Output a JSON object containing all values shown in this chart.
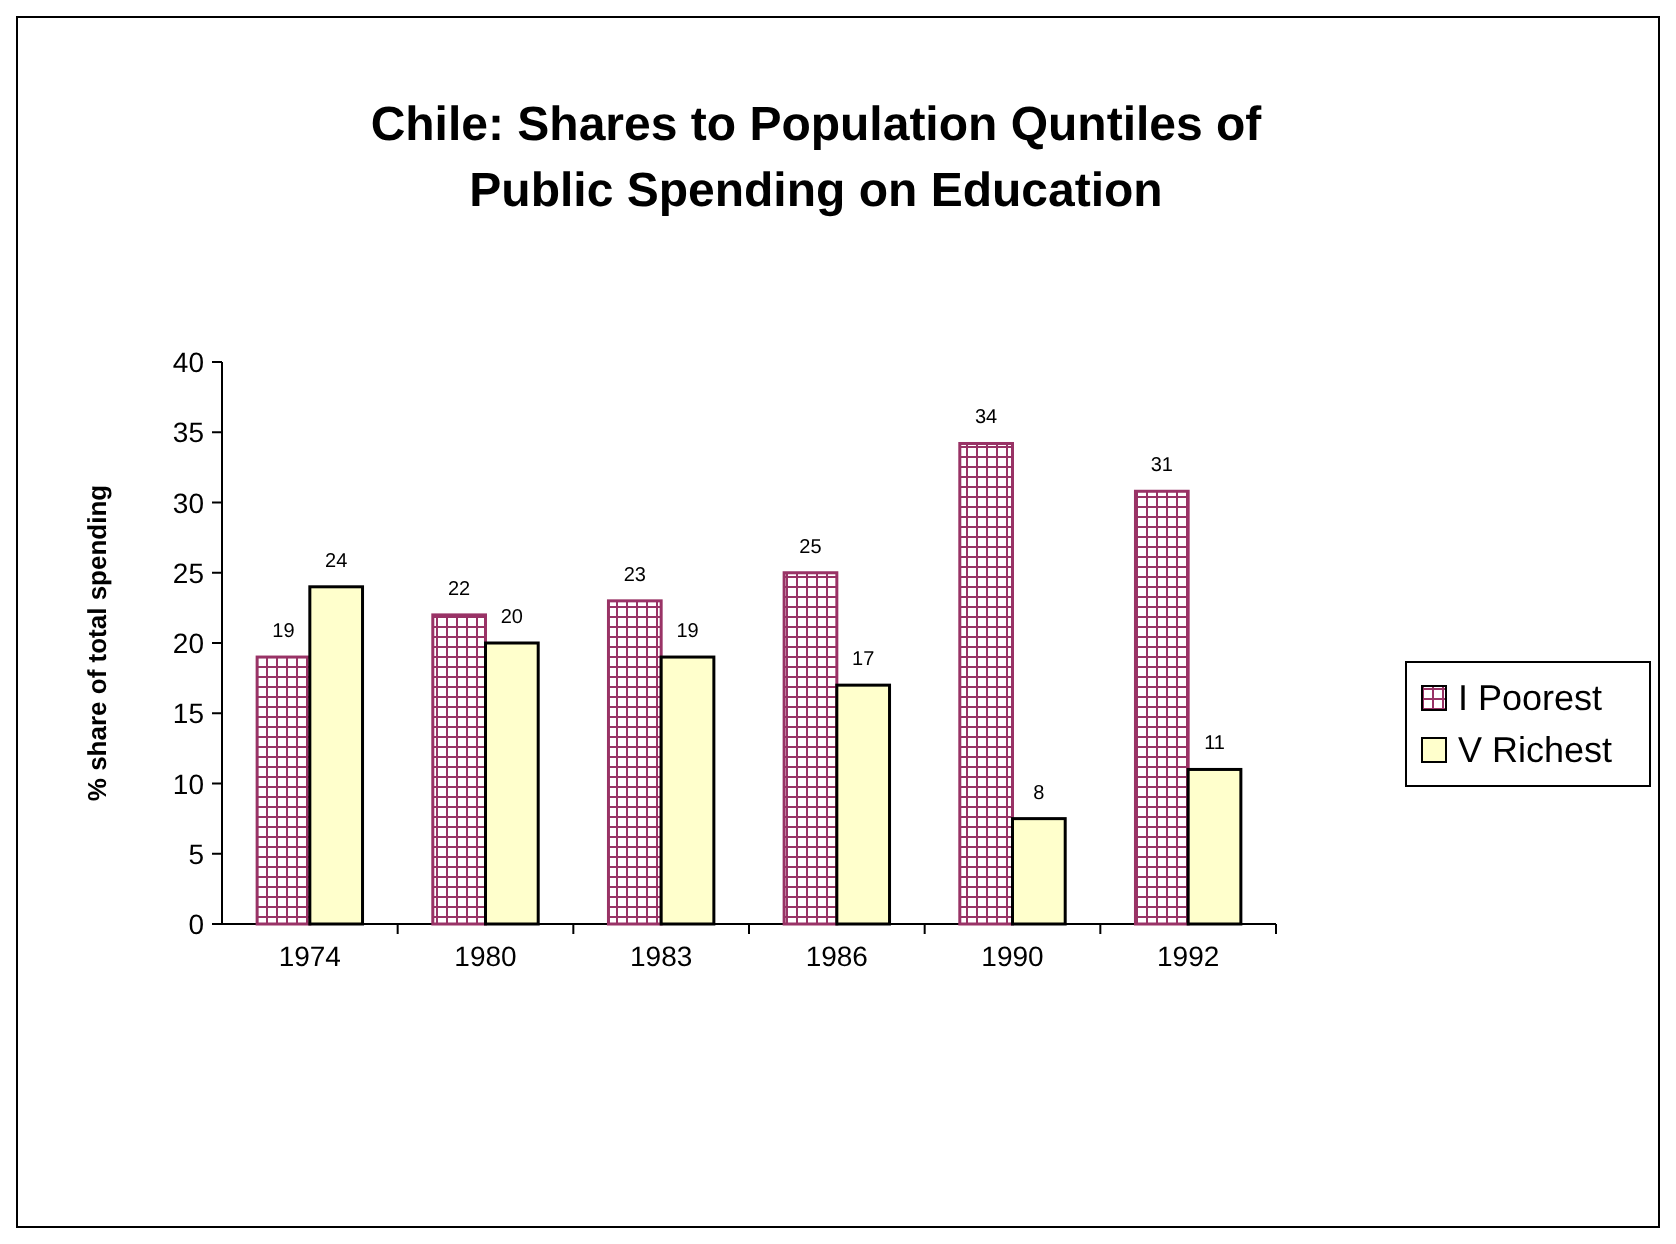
{
  "chart_data": {
    "type": "bar",
    "title": "Chile: Shares to Population Quntiles of Public Spending on Education",
    "ylabel": "% share of total spending",
    "categories": [
      "1974",
      "1980",
      "1983",
      "1986",
      "1990",
      "1992"
    ],
    "series": [
      {
        "name": "I Poorest",
        "color": "#993366",
        "values": [
          19,
          22,
          23,
          25,
          34.2,
          30.8
        ],
        "value_labels": [
          "19",
          "22",
          "23",
          "25",
          "34",
          "31"
        ]
      },
      {
        "name": "V Richest",
        "color": "#ffffcc",
        "values": [
          24,
          20,
          19,
          17,
          7.5,
          11
        ],
        "value_labels": [
          "24",
          "20",
          "19",
          "17",
          "8",
          "11"
        ]
      }
    ],
    "ylim": [
      0,
      40
    ],
    "yticks": [
      0,
      5,
      10,
      15,
      20,
      25,
      30,
      35,
      40
    ],
    "legend": "right"
  }
}
